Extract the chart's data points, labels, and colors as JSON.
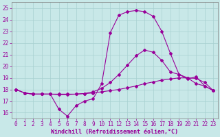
{
  "xlabel": "Windchill (Refroidissement éolien,°C)",
  "bg_color": "#c8e8e8",
  "grid_color": "#a8d0d0",
  "line_color": "#990099",
  "xlim": [
    -0.5,
    23.5
  ],
  "ylim": [
    15.5,
    25.5
  ],
  "yticks": [
    16,
    17,
    18,
    19,
    20,
    21,
    22,
    23,
    24,
    25
  ],
  "xticks": [
    0,
    1,
    2,
    3,
    4,
    5,
    6,
    7,
    8,
    9,
    10,
    11,
    12,
    13,
    14,
    15,
    16,
    17,
    18,
    19,
    20,
    21,
    22,
    23
  ],
  "curve1_x": [
    0,
    1,
    2,
    3,
    4,
    5,
    6,
    7,
    8,
    9,
    10,
    11,
    12,
    13,
    14,
    15,
    16,
    17,
    18,
    19,
    20,
    21,
    22,
    23
  ],
  "curve1_y": [
    18.0,
    17.7,
    17.6,
    17.6,
    17.6,
    16.3,
    15.7,
    16.6,
    17.0,
    17.2,
    18.5,
    22.9,
    24.4,
    24.7,
    24.8,
    24.7,
    24.3,
    23.0,
    21.1,
    19.3,
    18.9,
    19.1,
    18.3,
    17.9
  ],
  "curve2_x": [
    0,
    1,
    2,
    3,
    4,
    5,
    6,
    7,
    8,
    9,
    10,
    11,
    12,
    13,
    14,
    15,
    16,
    17,
    18,
    19,
    20,
    21,
    22,
    23
  ],
  "curve2_y": [
    18.0,
    17.7,
    17.6,
    17.6,
    17.6,
    17.55,
    17.55,
    17.6,
    17.65,
    17.8,
    18.1,
    18.6,
    19.3,
    20.1,
    20.9,
    21.4,
    21.2,
    20.5,
    19.5,
    19.3,
    19.0,
    18.5,
    18.3,
    17.9
  ],
  "curve3_x": [
    0,
    1,
    2,
    3,
    4,
    5,
    6,
    7,
    8,
    9,
    10,
    11,
    12,
    13,
    14,
    15,
    16,
    17,
    18,
    19,
    20,
    21,
    22,
    23
  ],
  "curve3_y": [
    18.0,
    17.7,
    17.6,
    17.6,
    17.6,
    17.6,
    17.6,
    17.6,
    17.65,
    17.7,
    17.8,
    17.9,
    18.0,
    18.15,
    18.3,
    18.5,
    18.65,
    18.8,
    18.9,
    19.0,
    19.0,
    18.95,
    18.6,
    17.9
  ],
  "marker": "D",
  "marker_size": 2.0,
  "line_width": 0.8,
  "font_size_ticks": 5.5,
  "font_size_xlabel": 6.0
}
